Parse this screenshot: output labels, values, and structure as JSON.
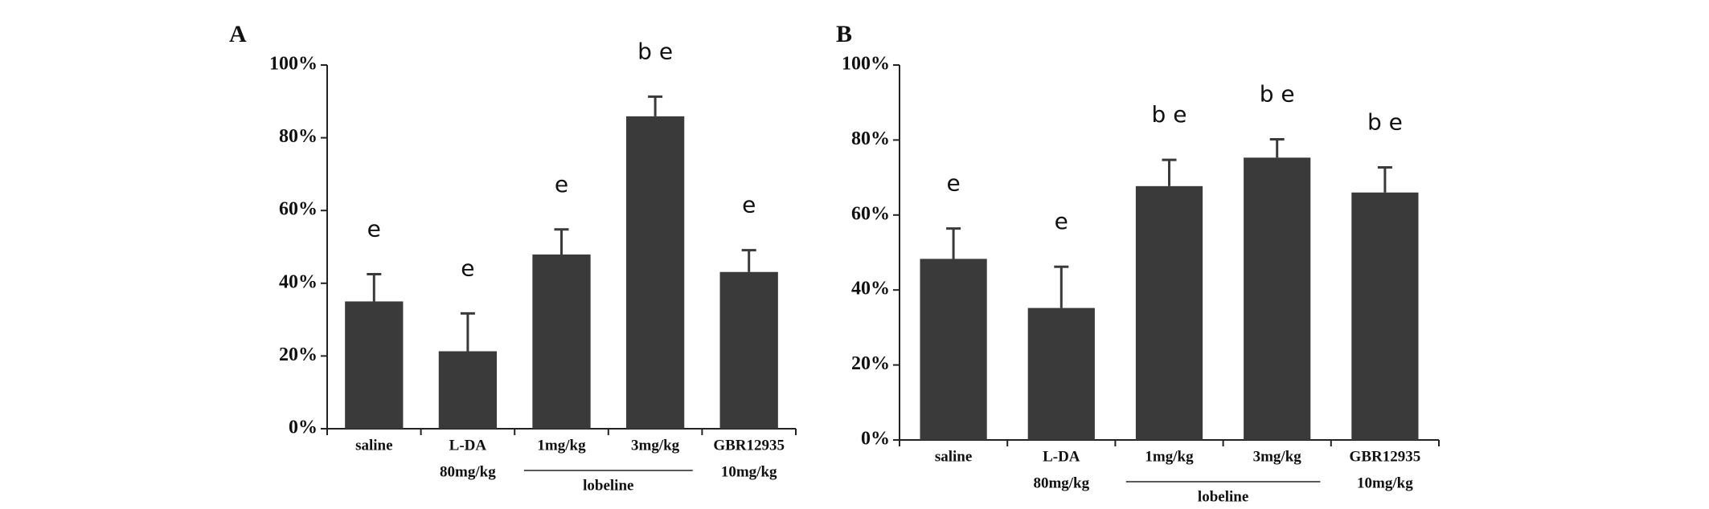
{
  "chart_data": [
    {
      "type": "bar",
      "panel": "A",
      "categories": [
        [
          "saline"
        ],
        [
          "L-DA",
          "80mg/kg"
        ],
        [
          "1mg/kg"
        ],
        [
          "3mg/kg"
        ],
        [
          "GBR12935",
          "10mg/kg"
        ]
      ],
      "values": [
        35,
        21.3,
        47.9,
        85.9,
        43.1
      ],
      "errors": [
        7.5,
        10.4,
        6.9,
        5.4,
        6
      ],
      "annotations": [
        "e",
        "e",
        "e",
        "b e",
        "e"
      ],
      "groups": [
        {
          "label": "lobeline",
          "members": [
            2,
            3
          ]
        }
      ],
      "color": "#3a3a3a",
      "ylim": [
        0,
        100
      ],
      "yticks": [
        {
          "value": 0,
          "label": "0%"
        },
        {
          "value": 20,
          "label": "20%"
        },
        {
          "value": 40,
          "label": "40%"
        },
        {
          "value": 60,
          "label": "60%"
        },
        {
          "value": 80,
          "label": "80%"
        },
        {
          "value": 100,
          "label": "100%"
        }
      ]
    },
    {
      "type": "bar",
      "panel": "B",
      "categories": [
        [
          "saline"
        ],
        [
          "L-DA",
          "80mg/kg"
        ],
        [
          "1mg/kg"
        ],
        [
          "3mg/kg"
        ],
        [
          "GBR12935",
          "10mg/kg"
        ]
      ],
      "values": [
        48.3,
        35.2,
        67.7,
        75.3,
        66
      ],
      "errors": [
        8.1,
        11,
        7,
        4.9,
        6.7
      ],
      "annotations": [
        "e",
        "e",
        "b e",
        "b e",
        "b e"
      ],
      "groups": [
        {
          "label": "lobeline",
          "members": [
            2,
            3
          ]
        }
      ],
      "color": "#3a3a3a",
      "ylim": [
        0,
        100
      ],
      "yticks": [
        {
          "value": 0,
          "label": "0%"
        },
        {
          "value": 20,
          "label": "20%"
        },
        {
          "value": 40,
          "label": "40%"
        },
        {
          "value": 60,
          "label": "60%"
        },
        {
          "value": 80,
          "label": "80%"
        },
        {
          "value": 100,
          "label": "100%"
        }
      ]
    }
  ]
}
